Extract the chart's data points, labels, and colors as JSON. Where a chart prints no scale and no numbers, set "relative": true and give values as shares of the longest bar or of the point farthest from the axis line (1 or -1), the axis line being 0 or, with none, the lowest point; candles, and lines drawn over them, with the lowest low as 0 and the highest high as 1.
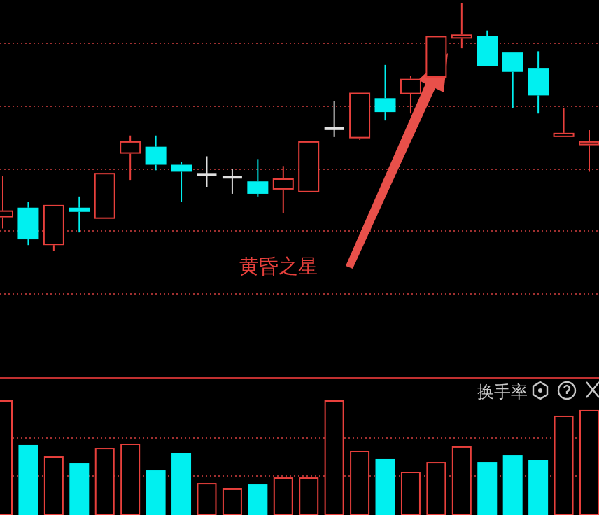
{
  "chart_data": [
    {
      "type": "candlestick",
      "relative": true,
      "ref_lines": [
        {
          "axis": "y",
          "value": 0.836,
          "color": "#a03030",
          "line_style": "dotted"
        },
        {
          "axis": "y",
          "value": 0.582,
          "color": "#a03030",
          "line_style": "dotted"
        },
        {
          "axis": "y",
          "value": 0.328,
          "color": "#a03030",
          "line_style": "dotted"
        },
        {
          "axis": "y",
          "value": 0.079,
          "color": "#a03030",
          "line_style": "dotted"
        },
        {
          "axis": "y",
          "value": -0.175,
          "color": "#a03030",
          "line_style": "dotted"
        }
      ],
      "categories": [
        null,
        null,
        null,
        null,
        null,
        null,
        null,
        null,
        null,
        null,
        null,
        null,
        null,
        null,
        null,
        null,
        null,
        null,
        null,
        null,
        null,
        null,
        null,
        null
      ],
      "ohlc": [
        [
          0.134,
          0.302,
          0.089,
          0.162
        ],
        [
          0.173,
          0.196,
          0.022,
          0.045
        ],
        [
          0.022,
          0.184,
          0,
          0.184
        ],
        [
          0.173,
          0.218,
          0.073,
          0.156
        ],
        [
          0.128,
          0.313,
          0.128,
          0.313
        ],
        [
          0.391,
          0.464,
          0.285,
          0.441
        ],
        [
          0.419,
          0.464,
          0.324,
          0.346
        ],
        [
          0.346,
          0.358,
          0.196,
          0.318
        ],
        [
          0.307,
          0.38,
          0.257,
          0.307
        ],
        [
          0.296,
          0.33,
          0.229,
          0.296
        ],
        [
          0.279,
          0.369,
          0.218,
          0.229
        ],
        [
          0.246,
          0.341,
          0.151,
          0.291
        ],
        [
          0.235,
          0.441,
          0.235,
          0.441
        ],
        [
          0.492,
          0.603,
          0.458,
          0.492
        ],
        [
          0.453,
          0.637,
          0.447,
          0.637
        ],
        [
          0.615,
          0.749,
          0.525,
          0.559
        ],
        [
          0.631,
          0.704,
          0.553,
          0.693
        ],
        [
          0.698,
          0.866,
          0.698,
          0.866
        ],
        [
          0.855,
          1,
          0.816,
          0.872
        ],
        [
          0.866,
          0.888,
          0.743,
          0.743
        ],
        [
          0.799,
          0.799,
          0.575,
          0.721
        ],
        [
          0.737,
          0.804,
          0.553,
          0.626
        ],
        [
          0.458,
          0.575,
          0.458,
          0.475
        ],
        [
          0.425,
          0.486,
          0.318,
          0.441
        ]
      ],
      "colors": [
        "#e8403c",
        "#00f0f0",
        "#e8403c",
        "#00f0f0",
        "#e8403c",
        "#e8403c",
        "#00f0f0",
        "#00f0f0",
        "#e0e0e0",
        "#e0e0e0",
        "#00f0f0",
        "#e8403c",
        "#e8403c",
        "#e0e0e0",
        "#e8403c",
        "#00f0f0",
        "#e8403c",
        "#e8403c",
        "#e8403c",
        "#00f0f0",
        "#00f0f0",
        "#00f0f0",
        "#e8403c",
        "#e8403c"
      ],
      "annotations": [
        "黄昏之星"
      ]
    },
    {
      "type": "bar",
      "relative": true,
      "ref_lines": [
        {
          "axis": "y",
          "value": 0.671,
          "color": "#a03030",
          "line_style": "dotted"
        },
        {
          "axis": "y",
          "value": 0.341,
          "color": "#a03030",
          "line_style": "dotted"
        }
      ],
      "title": "换手率",
      "categories": [
        null,
        null,
        null,
        null,
        null,
        null,
        null,
        null,
        null,
        null,
        null,
        null,
        null,
        null,
        null,
        null,
        null,
        null,
        null,
        null,
        null,
        null,
        null,
        null
      ],
      "values": [
        1,
        0.61,
        0.512,
        0.451,
        0.585,
        0.622,
        0.39,
        0.537,
        0.28,
        0.232,
        0.268,
        0.329,
        0.329,
        1,
        0.561,
        0.488,
        0.378,
        0.463,
        0.598,
        0.463,
        0.524,
        0.476,
        0.866,
        0.915
      ],
      "colors": [
        "#e8403c",
        "#00f0f0",
        "#e8403c",
        "#00f0f0",
        "#e8403c",
        "#e8403c",
        "#00f0f0",
        "#00f0f0",
        "#e8403c",
        "#e8403c",
        "#00f0f0",
        "#e8403c",
        "#e8403c",
        "#e8403c",
        "#e8403c",
        "#00f0f0",
        "#e8403c",
        "#e8403c",
        "#e8403c",
        "#00f0f0",
        "#00f0f0",
        "#00f0f0",
        "#e8403c",
        "#e8403c"
      ]
    }
  ]
}
